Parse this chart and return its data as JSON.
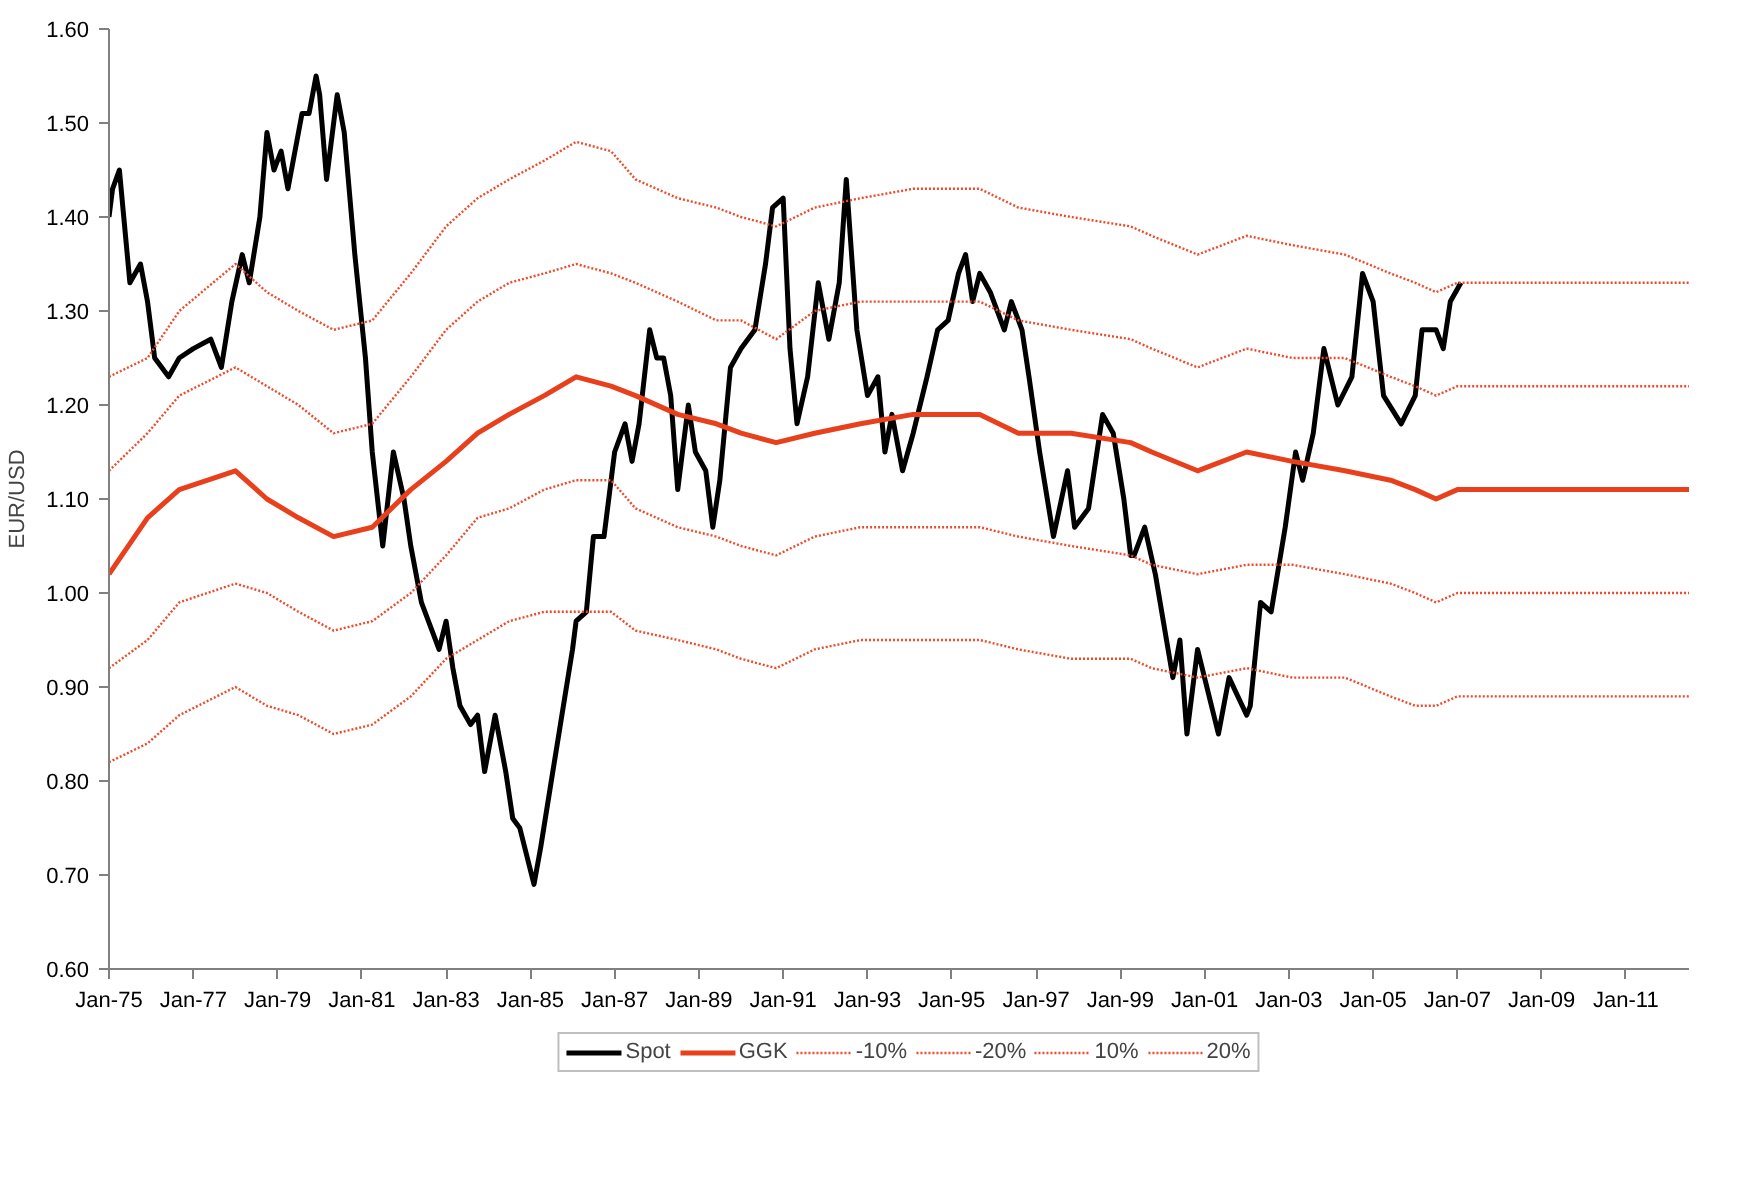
{
  "chart_data": {
    "type": "line",
    "ylabel": "EUR/USD",
    "xlim": [
      "1975-01",
      "2012-07"
    ],
    "xticks": [
      {
        "value": "1975-01",
        "label": "Jan-75"
      },
      {
        "value": "1977-01",
        "label": "Jan-77"
      },
      {
        "value": "1979-01",
        "label": "Jan-79"
      },
      {
        "value": "1981-01",
        "label": "Jan-81"
      },
      {
        "value": "1983-01",
        "label": "Jan-83"
      },
      {
        "value": "1985-01",
        "label": "Jan-85"
      },
      {
        "value": "1987-01",
        "label": "Jan-87"
      },
      {
        "value": "1989-01",
        "label": "Jan-89"
      },
      {
        "value": "1991-01",
        "label": "Jan-91"
      },
      {
        "value": "1993-01",
        "label": "Jan-93"
      },
      {
        "value": "1995-01",
        "label": "Jan-95"
      },
      {
        "value": "1997-01",
        "label": "Jan-97"
      },
      {
        "value": "1999-01",
        "label": "Jan-99"
      },
      {
        "value": "2001-01",
        "label": "Jan-01"
      },
      {
        "value": "2003-01",
        "label": "Jan-03"
      },
      {
        "value": "2005-01",
        "label": "Jan-05"
      },
      {
        "value": "2007-01",
        "label": "Jan-07"
      },
      {
        "value": "2009-01",
        "label": "Jan-09"
      },
      {
        "value": "2011-01",
        "label": "Jan-11"
      }
    ],
    "ylim": [
      0.6,
      1.6
    ],
    "yticks": [
      {
        "value": 0.6,
        "label": "0.60"
      },
      {
        "value": 0.7,
        "label": "0.70"
      },
      {
        "value": 0.8,
        "label": "0.80"
      },
      {
        "value": 0.9,
        "label": "0.90"
      },
      {
        "value": 1.0,
        "label": "1.00"
      },
      {
        "value": 1.1,
        "label": "1.10"
      },
      {
        "value": 1.2,
        "label": "1.20"
      },
      {
        "value": 1.3,
        "label": "1.30"
      },
      {
        "value": 1.4,
        "label": "1.40"
      },
      {
        "value": 1.5,
        "label": "1.50"
      },
      {
        "value": 1.6,
        "label": "1.60"
      }
    ],
    "grid": false,
    "legend": "bottom",
    "marker": "none",
    "x": [
      "1975-01",
      "1975-12",
      "1976-09",
      "1978-01",
      "1978-10",
      "1979-07",
      "1980-05",
      "1981-04",
      "1982-03",
      "1983-01",
      "1983-10",
      "1984-07",
      "1985-05",
      "1986-02",
      "1986-12",
      "1987-07",
      "1988-07",
      "1989-06",
      "1990-01",
      "1990-11",
      "1991-10",
      "1992-11",
      "1994-02",
      "1995-09",
      "1996-08",
      "1997-11",
      "1999-04",
      "1999-10",
      "2000-11",
      "2002-01",
      "2003-02",
      "2004-05",
      "2005-06",
      "2006-01",
      "2006-07",
      "2007-01",
      "2012-07"
    ],
    "series": [
      {
        "name": "Spot",
        "color": "#000000",
        "line_style": "solid",
        "x": [
          "1975-01",
          "1975-02",
          "1975-04",
          "1975-07",
          "1975-10",
          "1975-12",
          "1976-02",
          "1976-06",
          "1976-09",
          "1977-01",
          "1977-06",
          "1977-09",
          "1977-12",
          "1978-03",
          "1978-05",
          "1978-08",
          "1978-10",
          "1978-12",
          "1979-02",
          "1979-04",
          "1979-08",
          "1979-10",
          "1979-12",
          "1980-01",
          "1980-03",
          "1980-06",
          "1980-08",
          "1980-11",
          "1981-02",
          "1981-04",
          "1981-07",
          "1981-10",
          "1982-01",
          "1982-03",
          "1982-06",
          "1982-09",
          "1982-11",
          "1983-01",
          "1983-03",
          "1983-05",
          "1983-08",
          "1983-10",
          "1983-12",
          "1984-03",
          "1984-06",
          "1984-08",
          "1984-10",
          "1985-02",
          "1985-04",
          "1985-07",
          "1985-10",
          "1986-01",
          "1986-02",
          "1986-05",
          "1986-07",
          "1986-10",
          "1987-01",
          "1987-04",
          "1987-06",
          "1987-08",
          "1987-11",
          "1988-01",
          "1988-03",
          "1988-05",
          "1988-07",
          "1988-10",
          "1988-12",
          "1989-03",
          "1989-05",
          "1989-07",
          "1989-10",
          "1990-01",
          "1990-05",
          "1990-08",
          "1990-10",
          "1991-01",
          "1991-03",
          "1991-05",
          "1991-08",
          "1991-11",
          "1992-02",
          "1992-05",
          "1992-07",
          "1992-10",
          "1993-01",
          "1993-04",
          "1993-06",
          "1993-08",
          "1993-11",
          "1994-02",
          "1994-06",
          "1994-09",
          "1994-12",
          "1995-03",
          "1995-05",
          "1995-07",
          "1995-09",
          "1995-12",
          "1996-04",
          "1996-06",
          "1996-09",
          "1996-11",
          "1997-02",
          "1997-06",
          "1997-10",
          "1997-12",
          "1998-04",
          "1998-08",
          "1998-11",
          "1999-02",
          "1999-04",
          "1999-05",
          "1999-08",
          "1999-11",
          "2000-04",
          "2000-06",
          "2000-08",
          "2000-11",
          "2001-05",
          "2001-08",
          "2002-01",
          "2002-02",
          "2002-05",
          "2002-08",
          "2002-12",
          "2003-03",
          "2003-05",
          "2003-08",
          "2003-11",
          "2004-03",
          "2004-07",
          "2004-10",
          "2005-01",
          "2005-04",
          "2005-09",
          "2006-01",
          "2006-03",
          "2006-07",
          "2006-09",
          "2006-11",
          "2007-02"
        ],
        "values": [
          1.4,
          1.43,
          1.45,
          1.33,
          1.35,
          1.31,
          1.25,
          1.23,
          1.25,
          1.26,
          1.27,
          1.24,
          1.31,
          1.36,
          1.33,
          1.4,
          1.49,
          1.45,
          1.47,
          1.43,
          1.51,
          1.51,
          1.55,
          1.53,
          1.44,
          1.53,
          1.49,
          1.36,
          1.25,
          1.15,
          1.05,
          1.15,
          1.1,
          1.05,
          0.99,
          0.96,
          0.94,
          0.97,
          0.92,
          0.88,
          0.86,
          0.87,
          0.81,
          0.87,
          0.81,
          0.76,
          0.75,
          0.69,
          0.73,
          0.8,
          0.87,
          0.94,
          0.97,
          0.98,
          1.06,
          1.06,
          1.15,
          1.18,
          1.14,
          1.18,
          1.28,
          1.25,
          1.25,
          1.21,
          1.11,
          1.2,
          1.15,
          1.13,
          1.07,
          1.12,
          1.24,
          1.26,
          1.28,
          1.35,
          1.41,
          1.42,
          1.26,
          1.18,
          1.23,
          1.33,
          1.27,
          1.33,
          1.44,
          1.28,
          1.21,
          1.23,
          1.15,
          1.19,
          1.13,
          1.17,
          1.23,
          1.28,
          1.29,
          1.34,
          1.36,
          1.31,
          1.34,
          1.32,
          1.28,
          1.31,
          1.28,
          1.23,
          1.15,
          1.06,
          1.13,
          1.07,
          1.09,
          1.19,
          1.17,
          1.1,
          1.04,
          1.04,
          1.07,
          1.02,
          0.91,
          0.95,
          0.85,
          0.94,
          0.85,
          0.91,
          0.87,
          0.88,
          0.99,
          0.98,
          1.07,
          1.15,
          1.12,
          1.17,
          1.26,
          1.2,
          1.23,
          1.34,
          1.31,
          1.21,
          1.18,
          1.21,
          1.28,
          1.28,
          1.26,
          1.31,
          1.33
        ]
      },
      {
        "name": "GGK",
        "color": "#e8401c",
        "line_style": "solid",
        "values": [
          1.02,
          1.08,
          1.11,
          1.13,
          1.1,
          1.08,
          1.06,
          1.07,
          1.11,
          1.14,
          1.17,
          1.19,
          1.21,
          1.23,
          1.22,
          1.21,
          1.19,
          1.18,
          1.17,
          1.16,
          1.17,
          1.18,
          1.19,
          1.19,
          1.17,
          1.17,
          1.16,
          1.15,
          1.13,
          1.15,
          1.14,
          1.13,
          1.12,
          1.11,
          1.1,
          1.11,
          1.11
        ]
      },
      {
        "name": "-10%",
        "color": "#ee4a2a",
        "line_style": "dotted",
        "values": [
          0.92,
          0.95,
          0.99,
          1.01,
          1.0,
          0.98,
          0.96,
          0.97,
          1.0,
          1.04,
          1.08,
          1.09,
          1.11,
          1.12,
          1.12,
          1.09,
          1.07,
          1.06,
          1.05,
          1.04,
          1.06,
          1.07,
          1.07,
          1.07,
          1.06,
          1.05,
          1.04,
          1.03,
          1.02,
          1.03,
          1.03,
          1.02,
          1.01,
          1.0,
          0.99,
          1.0,
          1.0
        ]
      },
      {
        "name": "-20%",
        "color": "#ee4a2a",
        "line_style": "dotted",
        "values": [
          0.82,
          0.84,
          0.87,
          0.9,
          0.88,
          0.87,
          0.85,
          0.86,
          0.89,
          0.93,
          0.95,
          0.97,
          0.98,
          0.98,
          0.98,
          0.96,
          0.95,
          0.94,
          0.93,
          0.92,
          0.94,
          0.95,
          0.95,
          0.95,
          0.94,
          0.93,
          0.93,
          0.92,
          0.91,
          0.92,
          0.91,
          0.91,
          0.89,
          0.88,
          0.88,
          0.89,
          0.89
        ]
      },
      {
        "name": "10%",
        "color": "#ee4a2a",
        "line_style": "dotted",
        "values": [
          1.13,
          1.17,
          1.21,
          1.24,
          1.22,
          1.2,
          1.17,
          1.18,
          1.23,
          1.28,
          1.31,
          1.33,
          1.34,
          1.35,
          1.34,
          1.33,
          1.31,
          1.29,
          1.29,
          1.27,
          1.3,
          1.31,
          1.31,
          1.31,
          1.29,
          1.28,
          1.27,
          1.26,
          1.24,
          1.26,
          1.25,
          1.25,
          1.23,
          1.22,
          1.21,
          1.22,
          1.22
        ]
      },
      {
        "name": "20%",
        "color": "#ee4a2a",
        "line_style": "dotted",
        "values": [
          1.23,
          1.25,
          1.3,
          1.35,
          1.32,
          1.3,
          1.28,
          1.29,
          1.34,
          1.39,
          1.42,
          1.44,
          1.46,
          1.48,
          1.47,
          1.44,
          1.42,
          1.41,
          1.4,
          1.39,
          1.41,
          1.42,
          1.43,
          1.43,
          1.41,
          1.4,
          1.39,
          1.38,
          1.36,
          1.38,
          1.37,
          1.36,
          1.34,
          1.33,
          1.32,
          1.33,
          1.33
        ]
      }
    ]
  }
}
